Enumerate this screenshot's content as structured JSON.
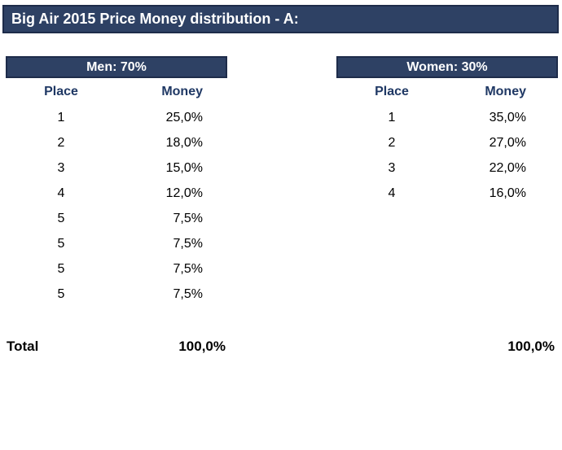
{
  "title": "Big Air 2015 Price Money distribution - A:",
  "colors": {
    "banner_background": "#2e4164",
    "banner_border": "#1e2c4a",
    "banner_text": "#ffffff",
    "column_header_text": "#1f3864",
    "body_text": "#000000",
    "page_background": "#ffffff"
  },
  "men": {
    "header": "Men: 70%",
    "col_place": "Place",
    "col_money": "Money",
    "rows": [
      {
        "place": "1",
        "money": "25,0%"
      },
      {
        "place": "2",
        "money": "18,0%"
      },
      {
        "place": "3",
        "money": "15,0%"
      },
      {
        "place": "4",
        "money": "12,0%"
      },
      {
        "place": "5",
        "money": "7,5%"
      },
      {
        "place": "5",
        "money": "7,5%"
      },
      {
        "place": "5",
        "money": "7,5%"
      },
      {
        "place": "5",
        "money": "7,5%"
      }
    ],
    "total": "100,0%"
  },
  "women": {
    "header": "Women: 30%",
    "col_place": "Place",
    "col_money": "Money",
    "rows": [
      {
        "place": "1",
        "money": "35,0%"
      },
      {
        "place": "2",
        "money": "27,0%"
      },
      {
        "place": "3",
        "money": "22,0%"
      },
      {
        "place": "4",
        "money": "16,0%"
      }
    ],
    "total": "100,0%"
  },
  "totals": {
    "label": "Total"
  }
}
